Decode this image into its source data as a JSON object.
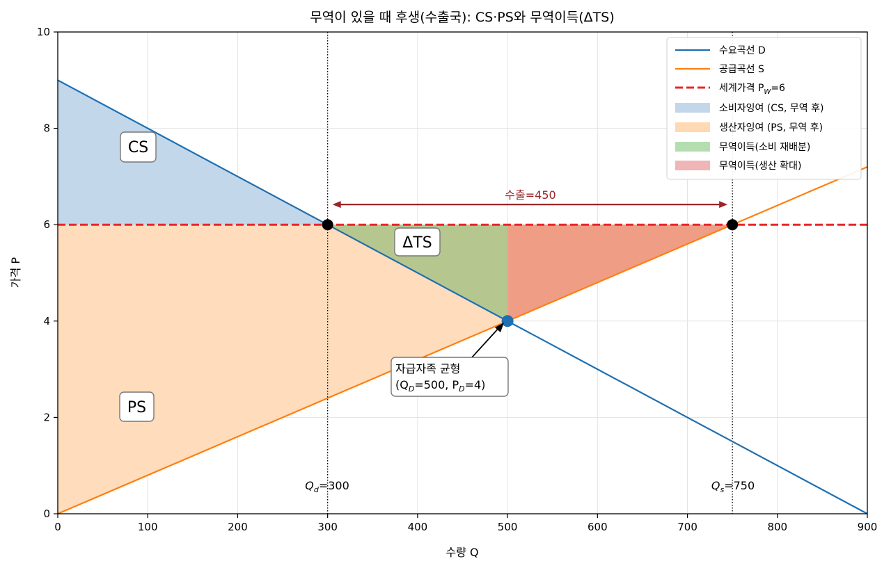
{
  "chart_data": {
    "type": "line",
    "title": "무역이 있을 때 후생(수출국): CS·PS와 무역이득(ΔTS)",
    "xlabel": "수량 Q",
    "ylabel": "가격 P",
    "xlim": [
      0,
      900
    ],
    "ylim": [
      0,
      10
    ],
    "x_ticks": [
      "0",
      "100",
      "200",
      "300",
      "400",
      "500",
      "600",
      "700",
      "800",
      "900"
    ],
    "y_ticks": [
      "0",
      "2",
      "4",
      "6",
      "8",
      "10"
    ],
    "grid": true,
    "legend_position": "top-right",
    "series": [
      {
        "name": "수요곡선 D",
        "color": "#1f6fb0",
        "x": [
          0,
          900
        ],
        "y": [
          9,
          0
        ]
      },
      {
        "name": "공급곡선 S",
        "color": "#ff7f0e",
        "x": [
          0,
          900
        ],
        "y": [
          0,
          7.2
        ]
      },
      {
        "name": "세계가격 P",
        "name_sub": "W",
        "name_suffix": "=6",
        "color": "#e8262a",
        "style": "dashed",
        "y": 6
      }
    ],
    "areas": [
      {
        "name": "소비자잉여 (CS, 무역 후)",
        "color": "#c3d7ea",
        "points": [
          [
            0,
            9
          ],
          [
            300,
            6
          ],
          [
            0,
            6
          ]
        ]
      },
      {
        "name": "생산자잉여 (PS, 무역 후)",
        "color": "#fedcbc",
        "points": [
          [
            0,
            0
          ],
          [
            750,
            6
          ],
          [
            0,
            6
          ]
        ]
      },
      {
        "name": "무역이득(소비 재배분)",
        "color": "#b5c78f",
        "points": [
          [
            300,
            6
          ],
          [
            500,
            6
          ],
          [
            500,
            4
          ]
        ]
      },
      {
        "name": "무역이득(생산 확대)",
        "color": "#ef9d85",
        "points": [
          [
            500,
            4
          ],
          [
            500,
            6
          ],
          [
            750,
            6
          ]
        ]
      }
    ],
    "legend_area_colors": [
      "#c3d7ea",
      "#fed9b3",
      "#b5deb0",
      "#efb5b7"
    ],
    "points": [
      {
        "x": 300,
        "y": 6,
        "color": "#000000"
      },
      {
        "x": 750,
        "y": 6,
        "color": "#000000"
      },
      {
        "x": 500,
        "y": 4,
        "color": "#1f6fb0"
      }
    ],
    "vlines": [
      300,
      750
    ],
    "annotations": {
      "cs": "CS",
      "ps": "PS",
      "dts": "ΔTS",
      "export_label": "수출=450",
      "export_arrow": [
        300,
        750,
        6.42
      ],
      "autarky_line1": "자급자족 균형",
      "autarky_line2_prefix": "(Q",
      "autarky_line2_sub1": "D",
      "autarky_line2_mid": "=500, P",
      "autarky_line2_sub2": "D",
      "autarky_line2_suffix": "=4)",
      "qd_main": "Q",
      "qd_sub": "d",
      "qd_val": "=300",
      "qs_main": "Q",
      "qs_sub": "s",
      "qs_val": "=750"
    }
  }
}
